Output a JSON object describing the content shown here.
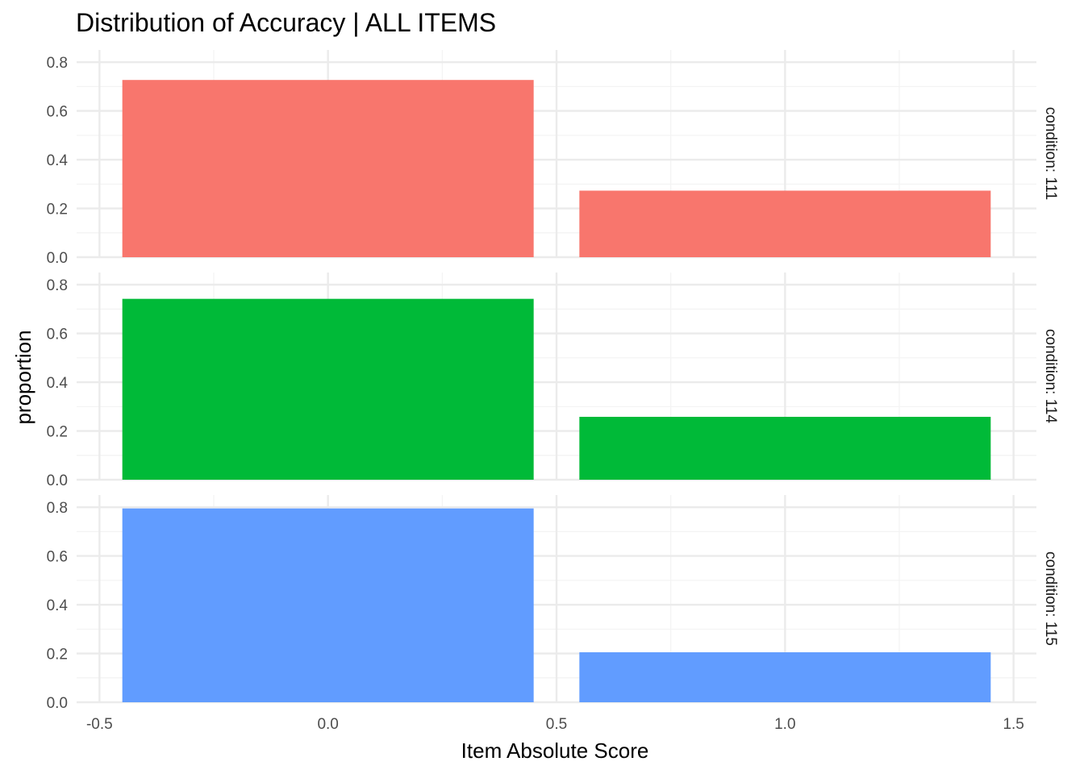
{
  "chart_data": {
    "type": "bar",
    "title": "Distribution of Accuracy  | ALL ITEMS",
    "xlabel": "Item Absolute Score",
    "ylabel": "proportion",
    "xlim": [
      -0.55,
      1.55
    ],
    "ylim": [
      0,
      0.85
    ],
    "x_ticks": [
      "-0.5",
      "0.0",
      "0.5",
      "1.0",
      "1.5"
    ],
    "x_tick_values": [
      -0.5,
      0,
      0.5,
      1,
      1.5
    ],
    "y_ticks": [
      "0.0",
      "0.2",
      "0.4",
      "0.6",
      "0.8"
    ],
    "y_tick_values": [
      0,
      0.2,
      0.4,
      0.6,
      0.8
    ],
    "bar_width": 0.9,
    "grid": true,
    "legend": "none",
    "facets": [
      {
        "label": "condition: 111",
        "color": "#F8766D",
        "bars": [
          {
            "x": 0,
            "y": 0.727
          },
          {
            "x": 1,
            "y": 0.273
          }
        ]
      },
      {
        "label": "condition: 114",
        "color": "#00BA38",
        "bars": [
          {
            "x": 0,
            "y": 0.742
          },
          {
            "x": 1,
            "y": 0.258
          }
        ]
      },
      {
        "label": "condition: 115",
        "color": "#619CFF",
        "bars": [
          {
            "x": 0,
            "y": 0.795
          },
          {
            "x": 1,
            "y": 0.205
          }
        ]
      }
    ]
  }
}
